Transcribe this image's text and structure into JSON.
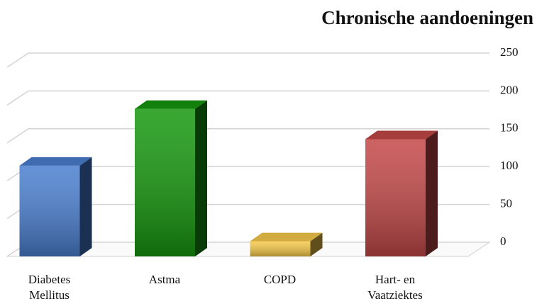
{
  "chart_data": {
    "type": "bar3d",
    "title": "Chronische aandoeningen",
    "categories": [
      "Diabetes Mellitus",
      "Astma",
      "COPD",
      "Hart- en Vaatziektes"
    ],
    "values": [
      120,
      195,
      20,
      155
    ],
    "colors": [
      "#4a7fd0",
      "#16980e",
      "#f6c94a",
      "#c44848"
    ],
    "ylim": [
      0,
      250
    ],
    "yticks": [
      0,
      50,
      100,
      150,
      200,
      250
    ],
    "grid": true
  }
}
